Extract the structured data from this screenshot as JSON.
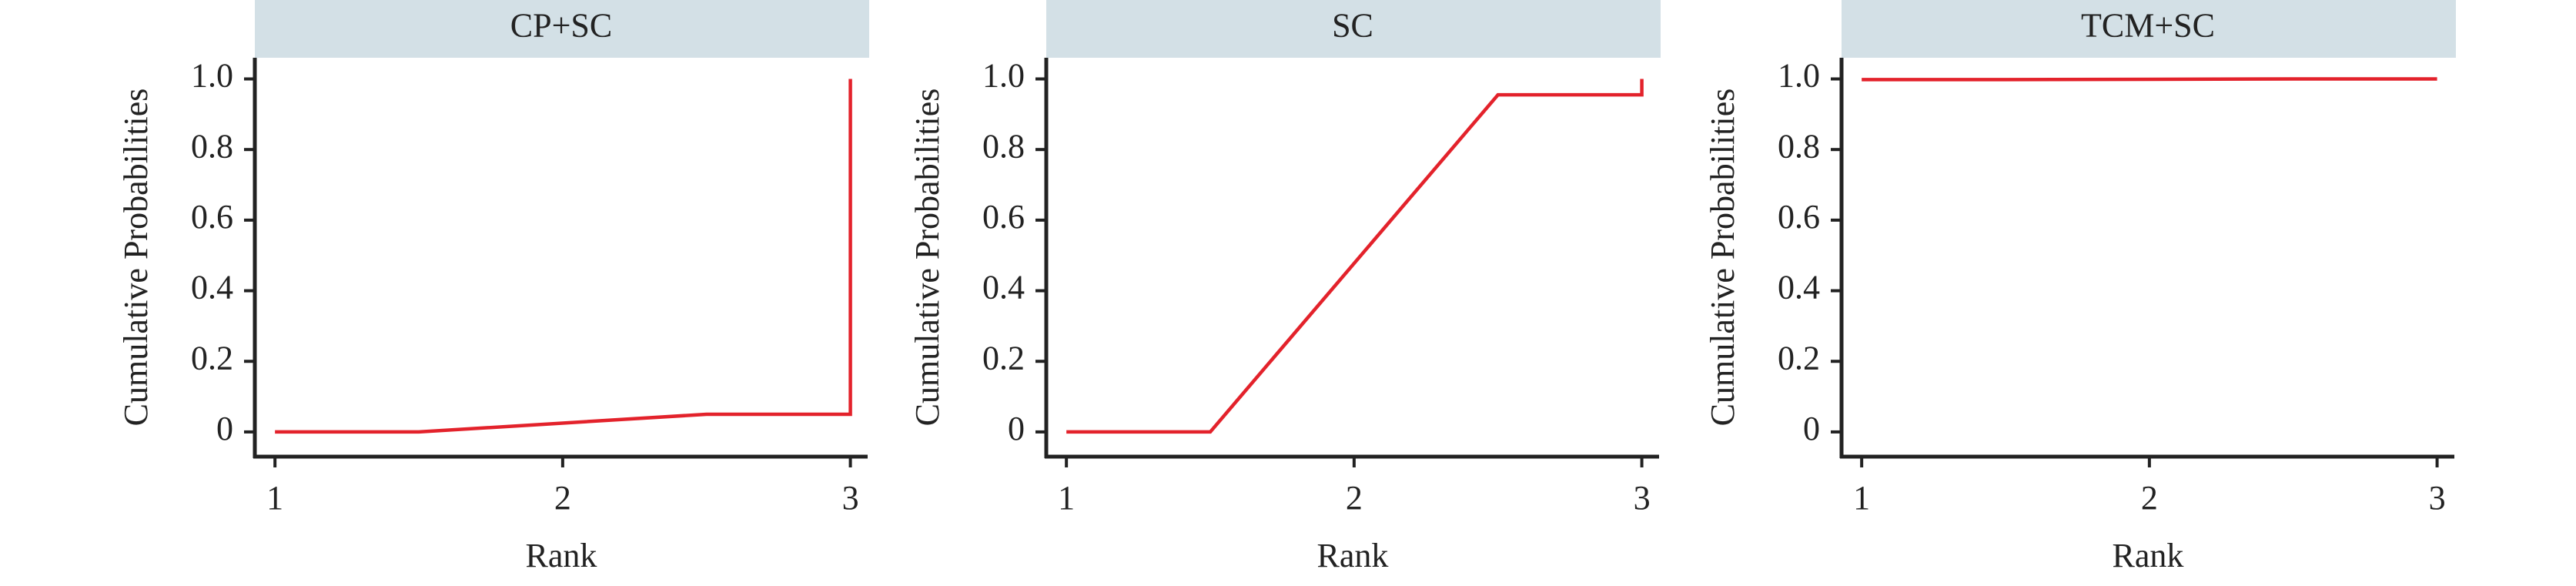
{
  "chart_data": [
    {
      "type": "line",
      "title": "CP+SC",
      "xlabel": "Rank",
      "ylabel": "Cumulative Probabilities",
      "x": [
        1,
        1.5,
        2.5,
        3,
        3
      ],
      "series": [
        {
          "color": "#e3222b",
          "values": [
            0,
            0,
            0.05,
            0.05,
            1.0
          ]
        }
      ],
      "xlim": [
        0.93,
        3.06
      ],
      "ylim": [
        -0.07,
        1.06
      ],
      "xticks": [
        1,
        2,
        3
      ],
      "yticks": [
        0,
        0.2,
        0.4,
        0.6,
        0.8,
        {
          "value": 1,
          "label": "1.0"
        }
      ],
      "grid": false
    },
    {
      "type": "line",
      "title": "SC",
      "xlabel": "Rank",
      "ylabel": "Cumulative Probabilities",
      "x": [
        1,
        1.5,
        2.5,
        3,
        3
      ],
      "series": [
        {
          "color": "#e3222b",
          "values": [
            0,
            0,
            0.955,
            0.955,
            1.0
          ]
        }
      ],
      "xlim": [
        0.93,
        3.06
      ],
      "ylim": [
        -0.07,
        1.06
      ],
      "xticks": [
        1,
        2,
        3
      ],
      "yticks": [
        0,
        0.2,
        0.4,
        0.6,
        0.8,
        {
          "value": 1,
          "label": "1.0"
        }
      ],
      "grid": false
    },
    {
      "type": "line",
      "title": "TCM+SC",
      "xlabel": "Rank",
      "ylabel": "Cumulative Probabilities",
      "x": [
        1,
        1.5,
        2.5,
        3
      ],
      "series": [
        {
          "color": "#e3222b",
          "values": [
            0.998,
            0.998,
            1.0,
            1.0
          ]
        }
      ],
      "xlim": [
        0.93,
        3.06
      ],
      "ylim": [
        -0.07,
        1.06
      ],
      "xticks": [
        1,
        2,
        3
      ],
      "yticks": [
        0,
        0.2,
        0.4,
        0.6,
        0.8,
        {
          "value": 1,
          "label": "1.0"
        }
      ],
      "grid": false
    }
  ]
}
